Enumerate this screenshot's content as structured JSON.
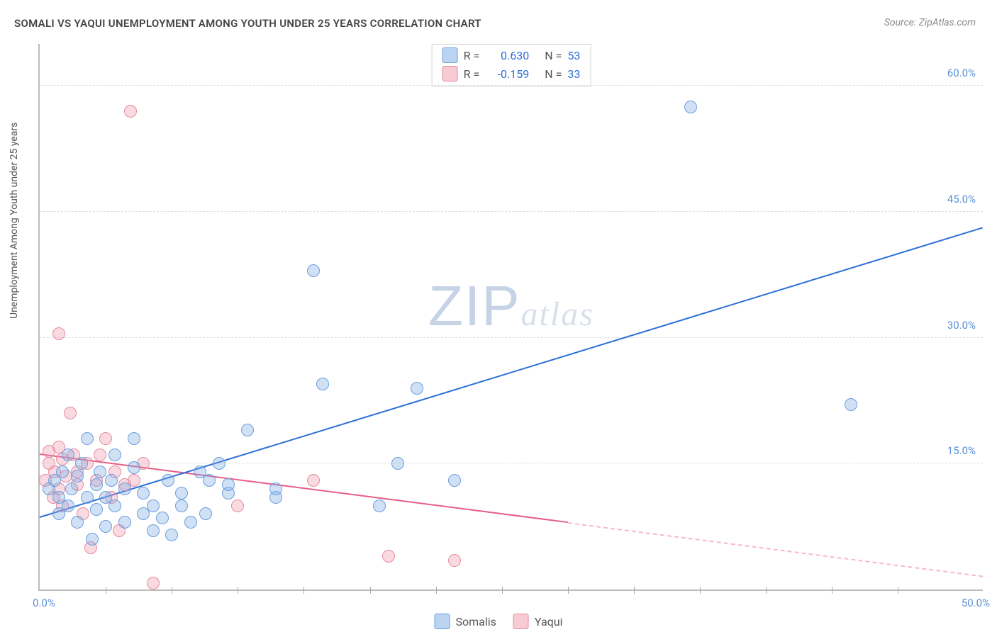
{
  "title": "SOMALI VS YAQUI UNEMPLOYMENT AMONG YOUTH UNDER 25 YEARS CORRELATION CHART",
  "source": "Source: ZipAtlas.com",
  "ylabel": "Unemployment Among Youth under 25 years",
  "watermark_zip": "ZIP",
  "watermark_atlas": "atlas",
  "chart": {
    "type": "scatter",
    "xlim": [
      0,
      50
    ],
    "ylim": [
      0,
      65
    ],
    "yticklabels": [
      "15.0%",
      "30.0%",
      "45.0%",
      "60.0%"
    ],
    "ytick_values": [
      15,
      30,
      45,
      60
    ],
    "x_origin_label": "0.0%",
    "x_max_label": "50.0%",
    "xtick_values": [
      3.5,
      7,
      10.5,
      14,
      17.5,
      21,
      24.5,
      28,
      31.5,
      35,
      38.5,
      42,
      45.5
    ],
    "background_color": "#ffffff",
    "grid_color": "#dddddd",
    "axis_color": "#bbbbbb",
    "series": {
      "somali": {
        "label": "Somalis",
        "color_fill": "rgba(120,170,230,0.35)",
        "color_stroke": "#6a9edb",
        "marker_size": 16,
        "trend_color": "#2e6fd6",
        "trend": {
          "x1": 0,
          "y1": 8.5,
          "x2": 50,
          "y2": 43,
          "solid_until_x": 50
        },
        "points": [
          [
            0.5,
            12
          ],
          [
            0.8,
            13
          ],
          [
            1,
            9
          ],
          [
            1,
            11
          ],
          [
            1.2,
            14
          ],
          [
            1.5,
            10
          ],
          [
            1.5,
            16
          ],
          [
            1.7,
            12
          ],
          [
            2,
            8
          ],
          [
            2,
            13.5
          ],
          [
            2.2,
            15
          ],
          [
            2.5,
            11
          ],
          [
            2.5,
            18
          ],
          [
            2.8,
            6
          ],
          [
            3,
            9.5
          ],
          [
            3,
            12.5
          ],
          [
            3.2,
            14
          ],
          [
            3.5,
            7.5
          ],
          [
            3.5,
            11
          ],
          [
            3.8,
            13
          ],
          [
            4,
            10
          ],
          [
            4,
            16
          ],
          [
            4.5,
            8
          ],
          [
            4.5,
            12
          ],
          [
            5,
            14.5
          ],
          [
            5,
            18
          ],
          [
            5.5,
            9
          ],
          [
            5.5,
            11.5
          ],
          [
            6,
            7
          ],
          [
            6,
            10
          ],
          [
            6.5,
            8.5
          ],
          [
            6.8,
            13
          ],
          [
            7,
            6.5
          ],
          [
            7.5,
            10
          ],
          [
            7.5,
            11.5
          ],
          [
            8,
            8
          ],
          [
            8.5,
            14
          ],
          [
            8.8,
            9
          ],
          [
            9,
            13
          ],
          [
            9.5,
            15
          ],
          [
            10,
            11.5
          ],
          [
            10,
            12.5
          ],
          [
            11,
            19
          ],
          [
            12.5,
            11
          ],
          [
            12.5,
            12
          ],
          [
            14.5,
            38
          ],
          [
            15,
            24.5
          ],
          [
            18,
            10
          ],
          [
            19,
            15
          ],
          [
            20,
            24
          ],
          [
            22,
            13
          ],
          [
            34.5,
            57.5
          ],
          [
            43,
            22
          ]
        ]
      },
      "yaqui": {
        "label": "Yaqui",
        "color_fill": "rgba(240,150,170,0.35)",
        "color_stroke": "#e68aa0",
        "marker_size": 16,
        "trend_color": "#e85d88",
        "trend": {
          "x1": 0,
          "y1": 16,
          "x2": 50,
          "y2": 1.5,
          "solid_until_x": 28
        },
        "points": [
          [
            0.3,
            13
          ],
          [
            0.5,
            15
          ],
          [
            0.5,
            16.5
          ],
          [
            0.7,
            11
          ],
          [
            0.8,
            14
          ],
          [
            1,
            12
          ],
          [
            1,
            17
          ],
          [
            1,
            30.5
          ],
          [
            1.2,
            10
          ],
          [
            1.2,
            15.5
          ],
          [
            1.4,
            13.5
          ],
          [
            1.6,
            21
          ],
          [
            1.8,
            16
          ],
          [
            2,
            12.5
          ],
          [
            2,
            14
          ],
          [
            2.3,
            9
          ],
          [
            2.5,
            15
          ],
          [
            2.7,
            5
          ],
          [
            3,
            13
          ],
          [
            3.2,
            16
          ],
          [
            3.5,
            18
          ],
          [
            3.8,
            11
          ],
          [
            4,
            14
          ],
          [
            4.2,
            7
          ],
          [
            4.5,
            12.5
          ],
          [
            4.8,
            57
          ],
          [
            5,
            13
          ],
          [
            5.5,
            15
          ],
          [
            6,
            0.8
          ],
          [
            10.5,
            10
          ],
          [
            14.5,
            13
          ],
          [
            18.5,
            4
          ],
          [
            22,
            3.5
          ]
        ]
      }
    },
    "stats": [
      {
        "series": "somali",
        "R": "0.630",
        "N": "53"
      },
      {
        "series": "yaqui",
        "R": "-0.159",
        "N": "33"
      }
    ]
  }
}
